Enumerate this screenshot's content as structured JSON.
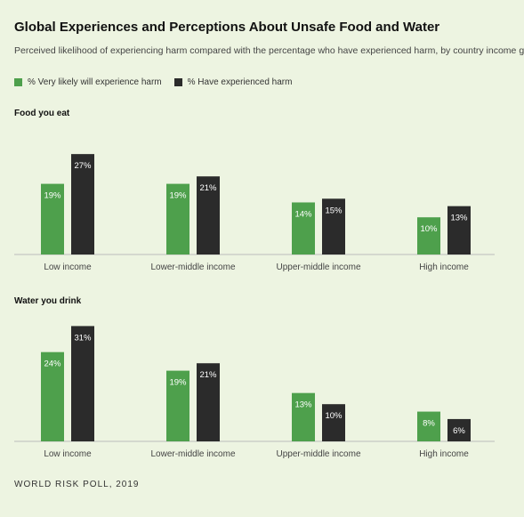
{
  "title": "Global Experiences and Perceptions About Unsafe Food and Water",
  "subtitle": "Perceived likelihood of experiencing harm compared with the percentage who have experienced harm, by country income group",
  "legend": [
    {
      "label": "% Very likely will experience harm",
      "color": "#4ea04c"
    },
    {
      "label": "% Have experienced harm",
      "color": "#2b2b2b"
    }
  ],
  "source": "WORLD RISK POLL, 2019",
  "chart_data": [
    {
      "type": "bar",
      "title": "Food you eat",
      "categories": [
        "Low income",
        "Lower-middle income",
        "Upper-middle income",
        "High income"
      ],
      "series": [
        {
          "name": "% Very likely will experience harm",
          "values": [
            19,
            19,
            14,
            10
          ],
          "labels": [
            "19%",
            "19%",
            "14%",
            "10%"
          ],
          "color": "#4ea04c"
        },
        {
          "name": "% Have experienced harm",
          "values": [
            27,
            21,
            15,
            13
          ],
          "labels": [
            "27%",
            "21%",
            "15%",
            "13%"
          ],
          "color": "#2b2b2b"
        }
      ],
      "ylim": [
        0,
        31
      ]
    },
    {
      "type": "bar",
      "title": "Water you drink",
      "categories": [
        "Low income",
        "Lower-middle income",
        "Upper-middle income",
        "High income"
      ],
      "series": [
        {
          "name": "% Very likely will experience harm",
          "values": [
            24,
            19,
            13,
            8
          ],
          "labels": [
            "24%",
            "19%",
            "13%",
            "8%"
          ],
          "color": "#4ea04c"
        },
        {
          "name": "% Have experienced harm",
          "values": [
            31,
            21,
            10,
            6
          ],
          "labels": [
            "31%",
            "21%",
            "10%",
            "6%"
          ],
          "color": "#2b2b2b"
        }
      ],
      "ylim": [
        0,
        31
      ]
    }
  ]
}
